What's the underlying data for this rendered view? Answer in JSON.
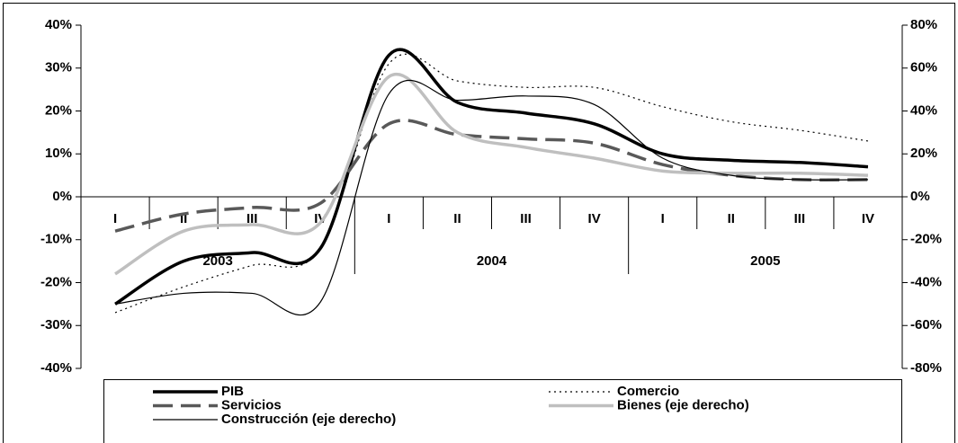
{
  "chart_data": {
    "type": "line",
    "categories": [
      "I",
      "II",
      "III",
      "IV",
      "I",
      "II",
      "III",
      "IV",
      "I",
      "II",
      "III",
      "IV"
    ],
    "years": [
      "2003",
      "2004",
      "2005"
    ],
    "ylim": [
      -40,
      40
    ],
    "yticks": [
      {
        "value": -40,
        "label": "-40%"
      },
      {
        "value": -30,
        "label": "-30%"
      },
      {
        "value": -20,
        "label": "-20%"
      },
      {
        "value": -10,
        "label": "-10%"
      },
      {
        "value": 0,
        "label": "0%"
      },
      {
        "value": 10,
        "label": "10%"
      },
      {
        "value": 20,
        "label": "20%"
      },
      {
        "value": 30,
        "label": "30%"
      },
      {
        "value": 40,
        "label": "40%"
      }
    ],
    "y2lim": [
      -80,
      80
    ],
    "y2ticks": [
      {
        "value": -80,
        "label": "-80%"
      },
      {
        "value": -60,
        "label": "-60%"
      },
      {
        "value": -40,
        "label": "-40%"
      },
      {
        "value": -20,
        "label": "-20%"
      },
      {
        "value": 0,
        "label": "0%"
      },
      {
        "value": 20,
        "label": "20%"
      },
      {
        "value": 40,
        "label": "40%"
      },
      {
        "value": 60,
        "label": "60%"
      },
      {
        "value": 80,
        "label": "80%"
      }
    ],
    "series": [
      {
        "name": "PIB",
        "color": "#000000",
        "style": "solid",
        "linewidth": 3.5,
        "values": [
          -25,
          -15,
          -13,
          -12,
          33,
          22,
          19.5,
          17,
          10,
          8.5,
          8,
          7
        ]
      },
      {
        "name": "Comercio",
        "color": "#000000",
        "style": "dotted",
        "linewidth": 1.2,
        "values": [
          -27,
          -21,
          -16,
          -12,
          31,
          27,
          25.5,
          25.5,
          21,
          17.5,
          15.5,
          13
        ]
      },
      {
        "name": "Servicios",
        "color": "#595959",
        "style": "dashed",
        "linewidth": 3.5,
        "values": [
          -8,
          -4,
          -2.5,
          -1.5,
          17,
          14.5,
          13.5,
          12.5,
          7.5,
          5,
          4,
          4
        ]
      },
      {
        "name": "Bienes (eje derecho)",
        "color": "#bfbfbf",
        "style": "solid",
        "linewidth": 3.5,
        "axis": "y2",
        "values": [
          -36,
          -16,
          -13,
          -12,
          56,
          30,
          23,
          18,
          12,
          11,
          11,
          10
        ]
      },
      {
        "name": "Construcción (eje derecho)",
        "color": "#000000",
        "style": "solid",
        "linewidth": 1.2,
        "axis": "y2",
        "values": [
          -50,
          -45,
          -45,
          -49,
          48,
          45,
          47,
          43,
          18,
          10,
          8,
          8
        ]
      }
    ]
  }
}
